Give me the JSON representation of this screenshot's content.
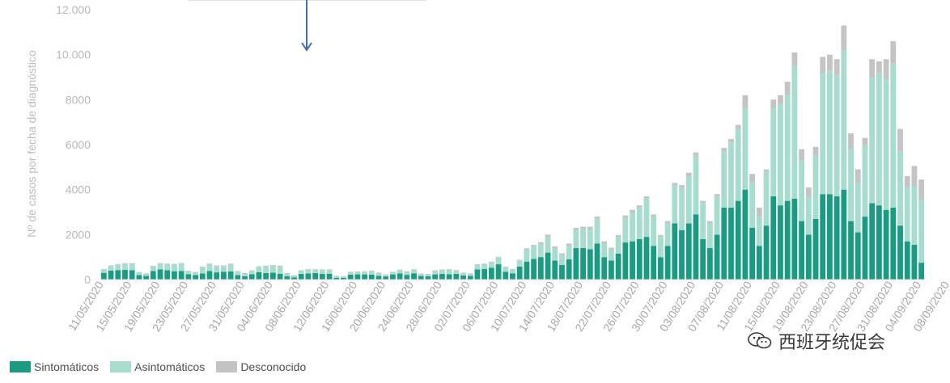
{
  "chart_data": {
    "type": "bar",
    "stacked": true,
    "title": "",
    "ylabel": "Nº de casos por fecha de diagnóstico",
    "xlabel": "",
    "ylim": [
      0,
      12000
    ],
    "yticks": [
      0,
      2000,
      4000,
      6000,
      8000,
      10000,
      12000
    ],
    "ytick_labels": [
      "0",
      "2000",
      "4000",
      "6000",
      "8000",
      "10.000",
      "12.000"
    ],
    "xtick_labels": [
      "11/05/2020",
      "15/05/2020",
      "19/05/2020",
      "23/05/2020",
      "27/05/2020",
      "31/05/2020",
      "04/06/2020",
      "08/06/2020",
      "12/06/2020",
      "16/06/2020",
      "20/06/2020",
      "24/06/2020",
      "28/06/2020",
      "02/07/2020",
      "06/07/2020",
      "10/07/2020",
      "14/07/2020",
      "18/07/2020",
      "22/07/2020",
      "26/07/2020",
      "30/07/2020",
      "03/08/2020",
      "07/08/2020",
      "11/08/2020",
      "15/08/2020",
      "19/08/2020",
      "23/08/2020",
      "27/08/2020",
      "31/08/2020",
      "04/09/2020",
      "08/09/2020"
    ],
    "grid": false,
    "legend_position": "bottom-left",
    "series": [
      {
        "name": "Sintomáticos",
        "color": "#1a9c82",
        "values": [
          300,
          400,
          420,
          430,
          420,
          200,
          160,
          380,
          450,
          420,
          370,
          380,
          240,
          200,
          270,
          380,
          320,
          350,
          360,
          200,
          150,
          240,
          330,
          290,
          310,
          260,
          150,
          100,
          250,
          270,
          290,
          250,
          260,
          80,
          80,
          220,
          230,
          230,
          220,
          170,
          140,
          230,
          270,
          210,
          280,
          160,
          150,
          230,
          250,
          240,
          250,
          180,
          160,
          450,
          470,
          530,
          680,
          350,
          280,
          580,
          800,
          920,
          1000,
          1200,
          850,
          650,
          900,
          1400,
          1400,
          1350,
          1600,
          1000,
          850,
          1150,
          1650,
          1700,
          1800,
          1900,
          1500,
          1000,
          1500,
          2500,
          2200,
          2500,
          2900,
          1800,
          1400,
          2000,
          3200,
          3200,
          3500,
          4000,
          2300,
          1500,
          2400,
          3700,
          3300,
          3500,
          3600,
          2600,
          2000,
          2700,
          3800,
          3800,
          3700,
          4000,
          2600,
          2100,
          2800,
          3400,
          3300,
          3100,
          3200,
          2400,
          1700,
          1550,
          750
        ]
      },
      {
        "name": "Asintomáticos",
        "color": "#a6ddce",
        "values": [
          150,
          200,
          240,
          270,
          280,
          120,
          100,
          200,
          250,
          260,
          300,
          330,
          130,
          120,
          280,
          300,
          280,
          250,
          320,
          160,
          120,
          150,
          230,
          300,
          310,
          330,
          120,
          80,
          150,
          160,
          140,
          170,
          160,
          70,
          50,
          110,
          110,
          120,
          160,
          120,
          70,
          100,
          140,
          130,
          150,
          90,
          80,
          150,
          170,
          190,
          140,
          110,
          100,
          200,
          210,
          240,
          300,
          200,
          170,
          270,
          550,
          560,
          580,
          700,
          520,
          440,
          600,
          800,
          850,
          900,
          1100,
          620,
          500,
          750,
          1100,
          1300,
          1400,
          1700,
          1300,
          900,
          1000,
          1700,
          1900,
          2100,
          2600,
          1600,
          1100,
          1700,
          2500,
          2900,
          3200,
          3600,
          2000,
          1300,
          2400,
          3900,
          4500,
          4700,
          5900,
          2700,
          1700,
          2800,
          5400,
          5500,
          5400,
          6200,
          3200,
          2200,
          3200,
          5600,
          5900,
          5800,
          6400,
          3300,
          2400,
          2600,
          2800
        ]
      },
      {
        "name": "Desconocido",
        "color": "#c4c4c4",
        "values": [
          20,
          30,
          30,
          30,
          30,
          20,
          20,
          30,
          30,
          30,
          30,
          30,
          20,
          20,
          30,
          30,
          30,
          30,
          30,
          20,
          20,
          20,
          30,
          30,
          30,
          30,
          20,
          20,
          20,
          30,
          30,
          30,
          30,
          20,
          20,
          20,
          20,
          20,
          20,
          20,
          20,
          20,
          30,
          30,
          30,
          20,
          20,
          30,
          30,
          30,
          30,
          20,
          20,
          30,
          30,
          30,
          30,
          30,
          20,
          30,
          40,
          60,
          80,
          100,
          100,
          80,
          100,
          100,
          100,
          100,
          100,
          80,
          70,
          80,
          100,
          100,
          100,
          100,
          90,
          80,
          100,
          100,
          100,
          150,
          150,
          100,
          100,
          100,
          150,
          150,
          180,
          600,
          400,
          400,
          100,
          400,
          400,
          600,
          600,
          500,
          400,
          400,
          700,
          700,
          700,
          1100,
          700,
          600,
          300,
          800,
          500,
          900,
          1000,
          1000,
          500,
          900,
          900
        ]
      }
    ]
  },
  "legend": {
    "items": [
      {
        "label": "Sintomáticos",
        "color": "#1a9c82"
      },
      {
        "label": "Asintomáticos",
        "color": "#a6ddce"
      },
      {
        "label": "Desconocido",
        "color": "#c4c4c4"
      }
    ]
  },
  "watermark": {
    "text": "西班牙统促会",
    "icon": "wechat-icon"
  },
  "annotation": {
    "icon": "arrow-down-icon",
    "color": "#3f6db3"
  }
}
